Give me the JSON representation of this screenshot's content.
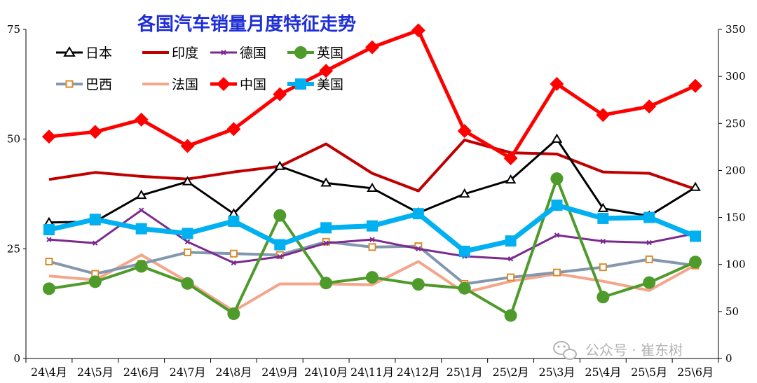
{
  "chart_data": {
    "type": "line",
    "title": "各国汽车销量月度特征走势",
    "categories": [
      "24\\4月",
      "24\\5月",
      "24\\6月",
      "24\\7月",
      "24\\8月",
      "24\\9月",
      "24\\10月",
      "24\\11月",
      "24\\12月",
      "25\\1月",
      "25\\2月",
      "25\\3月",
      "25\\4月",
      "25\\5月",
      "25\\6月"
    ],
    "left_axis": {
      "ylim": [
        0,
        75
      ],
      "ticks": [
        "0",
        "25",
        "50",
        "75"
      ]
    },
    "right_axis": {
      "ylim": [
        0,
        350
      ],
      "ticks": [
        "0",
        "50",
        "100",
        "150",
        "200",
        "250",
        "300",
        "350"
      ]
    },
    "legend_placement": "top-left",
    "series": [
      {
        "name": "日本",
        "axis": "left",
        "color": "#000000",
        "marker": "triangle",
        "width": 3,
        "values": [
          31.0,
          31.2,
          37.2,
          40.3,
          33.0,
          43.8,
          40.0,
          38.8,
          33.2,
          37.5,
          40.7,
          50.0,
          34.2,
          32.5,
          39.0
        ]
      },
      {
        "name": "印度",
        "axis": "left",
        "color": "#c00000",
        "marker": "none",
        "width": 4,
        "values": [
          40.8,
          42.4,
          41.5,
          40.9,
          42.5,
          43.8,
          48.9,
          42.2,
          38.2,
          49.8,
          46.9,
          46.6,
          42.5,
          42.2,
          38.6
        ]
      },
      {
        "name": "德国",
        "axis": "left",
        "color": "#7b2a8e",
        "marker": "x",
        "width": 3,
        "values": [
          27.1,
          26.3,
          33.8,
          26.6,
          21.8,
          23.2,
          26.3,
          27.1,
          25.0,
          23.3,
          22.7,
          28.1,
          26.7,
          26.4,
          28.5
        ]
      },
      {
        "name": "英国",
        "axis": "left",
        "color": "#4e9a2a",
        "marker": "circle",
        "width": 4,
        "values": [
          15.9,
          17.5,
          21.0,
          17.1,
          10.2,
          32.6,
          17.2,
          18.5,
          16.9,
          16.0,
          9.8,
          41.0,
          14.0,
          17.3,
          22.0
        ]
      },
      {
        "name": "巴西",
        "axis": "left",
        "color": "#8497b0",
        "marker": "square",
        "width": 4,
        "values": [
          22.1,
          19.3,
          21.6,
          24.2,
          23.9,
          23.6,
          26.6,
          25.4,
          25.6,
          17.0,
          18.5,
          19.6,
          20.8,
          22.6,
          21.2
        ]
      },
      {
        "name": "法国",
        "axis": "left",
        "color": "#f4a58a",
        "marker": "none",
        "width": 4,
        "values": [
          18.8,
          17.9,
          23.6,
          17.5,
          10.8,
          17.0,
          17.0,
          16.8,
          22.1,
          15.0,
          17.6,
          19.3,
          17.6,
          15.5,
          21.3
        ]
      },
      {
        "name": "中国",
        "axis": "right",
        "color": "#ff0000",
        "marker": "diamond",
        "width": 5,
        "values": [
          236,
          241,
          254,
          226,
          244,
          281,
          306,
          331,
          349,
          242,
          213,
          292,
          259,
          268,
          290
        ]
      },
      {
        "name": "美国",
        "axis": "right",
        "color": "#00b0f0",
        "marker": "square-fill",
        "width": 7,
        "values": [
          137,
          148,
          138,
          133,
          146,
          121,
          139,
          141,
          154,
          114,
          125,
          163,
          149,
          150,
          130
        ]
      }
    ]
  },
  "colors": {
    "title": "#1f2fd6",
    "axis": "#000000",
    "watermark": "#b3b3b3"
  },
  "watermark": {
    "text": "公众号 · 崔东树",
    "icon": "wechat-icon"
  }
}
